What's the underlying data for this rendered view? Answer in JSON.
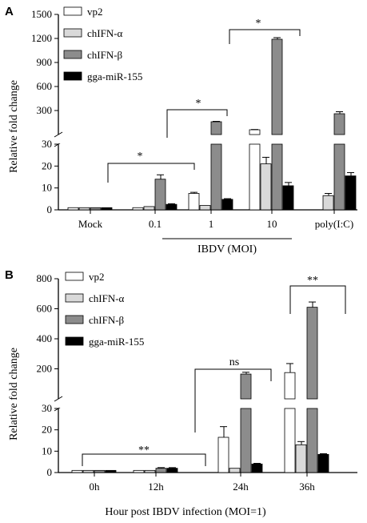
{
  "chart_data": [
    {
      "type": "bar",
      "panel_label": "A",
      "title": "",
      "ylabel": "Relative fold change",
      "xlabel": "IBDV (MOI)",
      "categories": [
        "Mock",
        "0.1",
        "1",
        "10",
        "poly(I:C)"
      ],
      "y_break": true,
      "ylim_lower": [
        0,
        30
      ],
      "ylim_upper": [
        0,
        1500
      ],
      "yticks_lower": [
        "0",
        "10",
        "20",
        "30"
      ],
      "yticks_upper": [
        "300",
        "600",
        "900",
        "1200",
        "1500"
      ],
      "legend_position": "top-left",
      "series": [
        {
          "name": "vp2",
          "color": "#ffffff",
          "values": [
            1,
            1,
            7.5,
            60,
            0
          ],
          "errors": [
            0,
            0,
            0.5,
            3,
            0
          ]
        },
        {
          "name": "chIFN-α",
          "color": "#d9d9d9",
          "values": [
            1,
            1.5,
            2,
            21,
            6.5
          ],
          "errors": [
            0,
            0,
            0,
            3,
            1
          ]
        },
        {
          "name": "chIFN-β",
          "color": "#8c8c8c",
          "values": [
            1,
            14,
            160,
            1190,
            260
          ],
          "errors": [
            0,
            2,
            5,
            20,
            25
          ]
        },
        {
          "name": "gga-miR-155",
          "color": "#000000",
          "values": [
            1,
            2.5,
            4.8,
            11,
            15.5
          ],
          "errors": [
            0,
            0.3,
            0.3,
            1.5,
            1.5
          ]
        }
      ],
      "significance": [
        {
          "label": "*",
          "from": "Mock",
          "to": "0.1"
        },
        {
          "label": "*",
          "from": "0.1",
          "to": "1"
        },
        {
          "label": "*",
          "from": "1",
          "to": "10"
        }
      ]
    },
    {
      "type": "bar",
      "panel_label": "B",
      "title": "",
      "ylabel": "Relative fold change",
      "xlabel": "Hour post IBDV infection (MOI=1)",
      "categories": [
        "0h",
        "12h",
        "24h",
        "36h"
      ],
      "y_break": true,
      "ylim_lower": [
        0,
        30
      ],
      "ylim_upper": [
        0,
        800
      ],
      "yticks_lower": [
        "0",
        "10",
        "20",
        "30"
      ],
      "yticks_upper": [
        "200",
        "400",
        "600",
        "800"
      ],
      "legend_position": "top-left",
      "series": [
        {
          "name": "vp2",
          "color": "#ffffff",
          "values": [
            1,
            1,
            16.5,
            175
          ],
          "errors": [
            0,
            0,
            5,
            60
          ]
        },
        {
          "name": "chIFN-α",
          "color": "#d9d9d9",
          "values": [
            1,
            1,
            2,
            13
          ],
          "errors": [
            0,
            0,
            0,
            1.5
          ]
        },
        {
          "name": "chIFN-β",
          "color": "#8c8c8c",
          "values": [
            1,
            2,
            165,
            610
          ],
          "errors": [
            0,
            0.3,
            12,
            35
          ]
        },
        {
          "name": "gga-miR-155",
          "color": "#000000",
          "values": [
            1,
            2,
            4,
            8.5
          ],
          "errors": [
            0,
            0.3,
            0.3,
            0.3
          ]
        }
      ],
      "significance": [
        {
          "label": "**",
          "from": "0h",
          "to": "12h"
        },
        {
          "label": "ns",
          "from": "12h",
          "to": "24h"
        },
        {
          "label": "**",
          "from": "24h",
          "to": "36h"
        }
      ]
    }
  ]
}
